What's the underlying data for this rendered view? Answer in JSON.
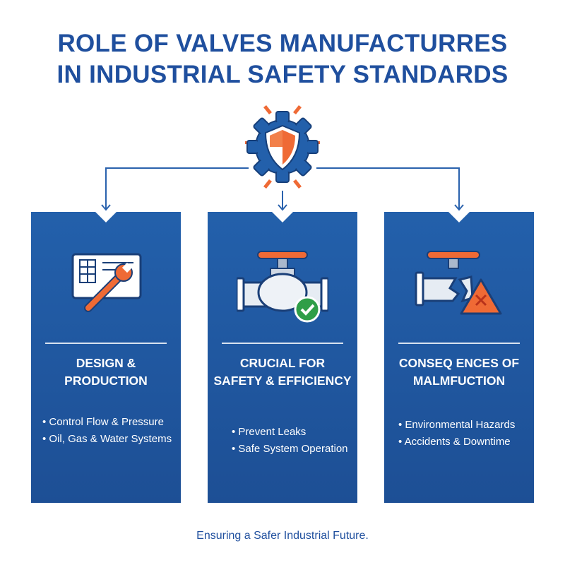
{
  "title": {
    "line1": "ROLE OF VALVES MANUFACTURRES",
    "line2": "IN INDUSTRIAL SAFETY STANDARDS"
  },
  "center_icon": "gear-shield-icon",
  "colors": {
    "blue": "#1f4f9e",
    "panel": "#2360ab",
    "orange": "#ef6a35",
    "green": "#2f9e48"
  },
  "panels": [
    {
      "icon": "blueprint-wrench-icon",
      "title_line1": "DESIGN &",
      "title_line2": "PRODUCTION",
      "bullets": [
        "Control Flow & Pressure",
        "Oil, Gas & Water Systems"
      ]
    },
    {
      "icon": "valve-check-icon",
      "title_line1": "CRUCIAL FOR",
      "title_line2": "SAFETY & EFFICIENCY",
      "bullets": [
        "Prevent Leaks",
        "Safe System Operation"
      ]
    },
    {
      "icon": "broken-valve-warning-icon",
      "title_line1": "CONSEQ ENCES OF",
      "title_line2": "MALMFUCTION",
      "bullets": [
        "Environmental Hazards",
        "Accidents & Downtime"
      ]
    }
  ],
  "footer": "Ensuring a Safer Industrial Future."
}
